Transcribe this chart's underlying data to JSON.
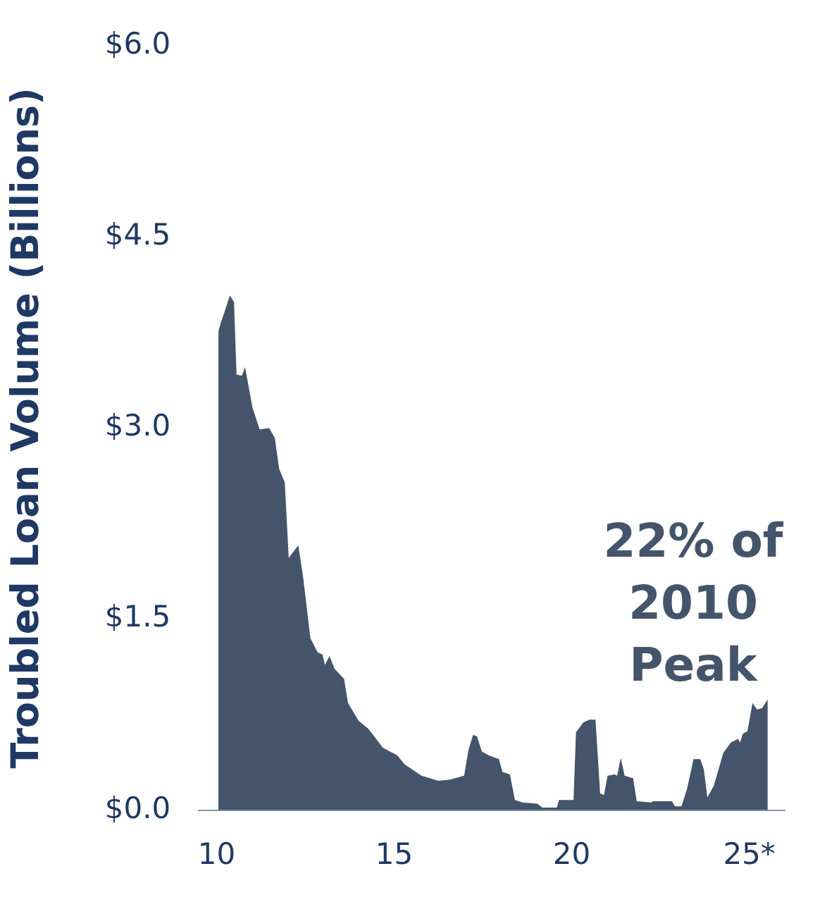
{
  "chart_data": {
    "type": "area",
    "ylabel": "Troubled Loan Volume (Billions)",
    "annotations": [
      "22% of 2010 Peak"
    ],
    "xlim": [
      9.5,
      26
    ],
    "xticks": [
      10,
      15,
      20,
      {
        "value": 25,
        "label": "25*"
      }
    ],
    "ylim": [
      0,
      6
    ],
    "yticks": [
      {
        "value": 0,
        "label": "$0.0"
      },
      {
        "value": 1.5,
        "label": "$1.5"
      },
      {
        "value": 3,
        "label": "$3.0"
      },
      {
        "value": 4.5,
        "label": "$4.5"
      },
      {
        "value": 6,
        "label": "$6.0"
      }
    ],
    "grid": false,
    "legend": false,
    "series": [
      {
        "color": "#44546a",
        "x": [
          10.05,
          10.12,
          10.22,
          10.37,
          10.49,
          10.56,
          10.71,
          10.8,
          11.01,
          11.21,
          11.48,
          11.64,
          11.76,
          11.92,
          12.03,
          12.3,
          12.44,
          12.64,
          12.84,
          12.98,
          13.05,
          13.18,
          13.32,
          13.59,
          13.7,
          14.0,
          14.27,
          14.68,
          15.09,
          15.29,
          15.77,
          16.24,
          16.58,
          16.97,
          17.09,
          17.22,
          17.33,
          17.47,
          17.67,
          17.95,
          18.05,
          18.26,
          18.4,
          18.62,
          19.03,
          19.17,
          19.58,
          19.64,
          19.85,
          20.05,
          20.12,
          20.33,
          20.5,
          20.67,
          20.8,
          20.91,
          21.01,
          21.21,
          21.28,
          21.38,
          21.49,
          21.73,
          21.83,
          22.23,
          22.3,
          22.82,
          22.91,
          23.09,
          23.25,
          23.43,
          23.62,
          23.72,
          23.82,
          24.0,
          24.27,
          24.48,
          24.68,
          24.74,
          24.82,
          24.95,
          25.09,
          25.22,
          25.36,
          25.43,
          25.52
        ],
        "values": [
          3.76,
          3.83,
          3.91,
          4.04,
          3.99,
          3.42,
          3.41,
          3.48,
          3.16,
          2.99,
          3.0,
          2.92,
          2.68,
          2.57,
          1.98,
          2.08,
          1.82,
          1.35,
          1.24,
          1.22,
          1.14,
          1.21,
          1.11,
          1.03,
          0.84,
          0.7,
          0.64,
          0.49,
          0.43,
          0.36,
          0.27,
          0.23,
          0.24,
          0.27,
          0.47,
          0.59,
          0.58,
          0.46,
          0.43,
          0.4,
          0.3,
          0.28,
          0.08,
          0.06,
          0.05,
          0.02,
          0.02,
          0.08,
          0.08,
          0.08,
          0.61,
          0.69,
          0.71,
          0.71,
          0.13,
          0.12,
          0.27,
          0.28,
          0.27,
          0.41,
          0.27,
          0.25,
          0.07,
          0.06,
          0.07,
          0.07,
          0.03,
          0.03,
          0.17,
          0.4,
          0.4,
          0.32,
          0.1,
          0.19,
          0.45,
          0.53,
          0.56,
          0.53,
          0.6,
          0.62,
          0.84,
          0.79,
          0.8,
          0.83,
          0.87
        ]
      }
    ]
  }
}
